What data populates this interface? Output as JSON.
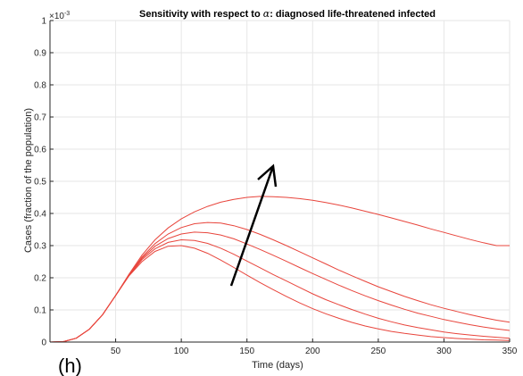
{
  "chart_data": {
    "type": "line",
    "title_prefix": "Sensitivity with respect to ",
    "title_symbol": "α",
    "title_suffix": ": diagnosed life-threatened infected",
    "xlabel": "Time (days)",
    "ylabel": "Cases (fraction of the population)",
    "xlim": [
      0,
      350
    ],
    "ylim": [
      0,
      1
    ],
    "y_scale_label_base": "×10",
    "y_scale_label_exp": "-3",
    "x_ticks": [
      50,
      100,
      150,
      200,
      250,
      300,
      350
    ],
    "x_tick_labels": [
      "50",
      "100",
      "150",
      "200",
      "250",
      "300",
      "350"
    ],
    "y_ticks": [
      0,
      0.1,
      0.2,
      0.3,
      0.4,
      0.5,
      0.6,
      0.7,
      0.8,
      0.9,
      1
    ],
    "y_tick_labels": [
      "0",
      "0.1",
      "0.2",
      "0.3",
      "0.4",
      "0.5",
      "0.6",
      "0.7",
      "0.8",
      "0.9",
      "1"
    ],
    "grid": true,
    "line_color": "#e8453c",
    "arrow_color": "#000000",
    "annotation": "increasing direction arrow",
    "panel_label": "(h)",
    "series": [
      {
        "x": [
          0,
          10,
          20,
          30,
          40,
          50,
          60,
          70,
          80,
          90,
          100,
          110,
          120,
          130,
          140,
          150,
          160,
          170,
          180,
          190,
          200,
          210,
          220,
          230,
          240,
          250,
          260,
          270,
          280,
          290,
          300,
          310,
          320,
          330,
          340,
          350
        ],
        "values": [
          0,
          0.001,
          0.012,
          0.04,
          0.085,
          0.145,
          0.205,
          0.25,
          0.282,
          0.298,
          0.3,
          0.292,
          0.276,
          0.255,
          0.232,
          0.208,
          0.185,
          0.163,
          0.142,
          0.122,
          0.104,
          0.088,
          0.074,
          0.061,
          0.05,
          0.041,
          0.033,
          0.027,
          0.022,
          0.017,
          0.014,
          0.011,
          0.009,
          0.007,
          0.006,
          0.005
        ]
      },
      {
        "x": [
          0,
          10,
          20,
          30,
          40,
          50,
          60,
          70,
          80,
          90,
          100,
          110,
          120,
          130,
          140,
          150,
          160,
          170,
          180,
          190,
          200,
          210,
          220,
          230,
          240,
          250,
          260,
          270,
          280,
          290,
          300,
          310,
          320,
          330,
          340,
          350
        ],
        "values": [
          0,
          0.001,
          0.012,
          0.04,
          0.085,
          0.145,
          0.206,
          0.256,
          0.29,
          0.31,
          0.318,
          0.316,
          0.307,
          0.292,
          0.273,
          0.252,
          0.231,
          0.21,
          0.19,
          0.17,
          0.15,
          0.132,
          0.116,
          0.101,
          0.087,
          0.074,
          0.063,
          0.053,
          0.045,
          0.038,
          0.031,
          0.026,
          0.022,
          0.018,
          0.015,
          0.012
        ]
      },
      {
        "x": [
          0,
          10,
          20,
          30,
          40,
          50,
          60,
          70,
          80,
          90,
          100,
          110,
          120,
          130,
          140,
          150,
          160,
          170,
          180,
          190,
          200,
          210,
          220,
          230,
          240,
          250,
          260,
          270,
          280,
          290,
          300,
          310,
          320,
          330,
          340,
          350
        ],
        "values": [
          0,
          0.001,
          0.012,
          0.04,
          0.085,
          0.145,
          0.207,
          0.26,
          0.298,
          0.322,
          0.336,
          0.342,
          0.34,
          0.333,
          0.321,
          0.305,
          0.288,
          0.27,
          0.251,
          0.232,
          0.213,
          0.195,
          0.177,
          0.16,
          0.144,
          0.129,
          0.115,
          0.102,
          0.09,
          0.08,
          0.07,
          0.062,
          0.054,
          0.047,
          0.041,
          0.036
        ]
      },
      {
        "x": [
          0,
          10,
          20,
          30,
          40,
          50,
          60,
          70,
          80,
          90,
          100,
          110,
          120,
          130,
          140,
          150,
          160,
          170,
          180,
          190,
          200,
          210,
          220,
          230,
          240,
          250,
          260,
          270,
          280,
          290,
          300,
          310,
          320,
          330,
          340,
          350
        ],
        "values": [
          0,
          0.001,
          0.012,
          0.04,
          0.085,
          0.145,
          0.208,
          0.264,
          0.306,
          0.336,
          0.356,
          0.368,
          0.372,
          0.37,
          0.362,
          0.35,
          0.335,
          0.318,
          0.3,
          0.281,
          0.262,
          0.243,
          0.224,
          0.206,
          0.189,
          0.172,
          0.157,
          0.142,
          0.129,
          0.116,
          0.105,
          0.095,
          0.085,
          0.076,
          0.068,
          0.062
        ]
      },
      {
        "x": [
          0,
          10,
          20,
          30,
          40,
          50,
          60,
          70,
          80,
          90,
          100,
          110,
          120,
          130,
          140,
          150,
          160,
          170,
          180,
          190,
          200,
          210,
          220,
          230,
          240,
          250,
          260,
          270,
          280,
          290,
          300,
          310,
          320,
          330,
          340,
          350
        ],
        "values": [
          0,
          0.001,
          0.012,
          0.04,
          0.085,
          0.145,
          0.21,
          0.27,
          0.318,
          0.355,
          0.383,
          0.405,
          0.422,
          0.435,
          0.444,
          0.45,
          0.453,
          0.452,
          0.45,
          0.446,
          0.441,
          0.434,
          0.426,
          0.417,
          0.407,
          0.397,
          0.386,
          0.375,
          0.364,
          0.352,
          0.341,
          0.33,
          0.319,
          0.309,
          0.3,
          0.3
        ]
      }
    ]
  }
}
